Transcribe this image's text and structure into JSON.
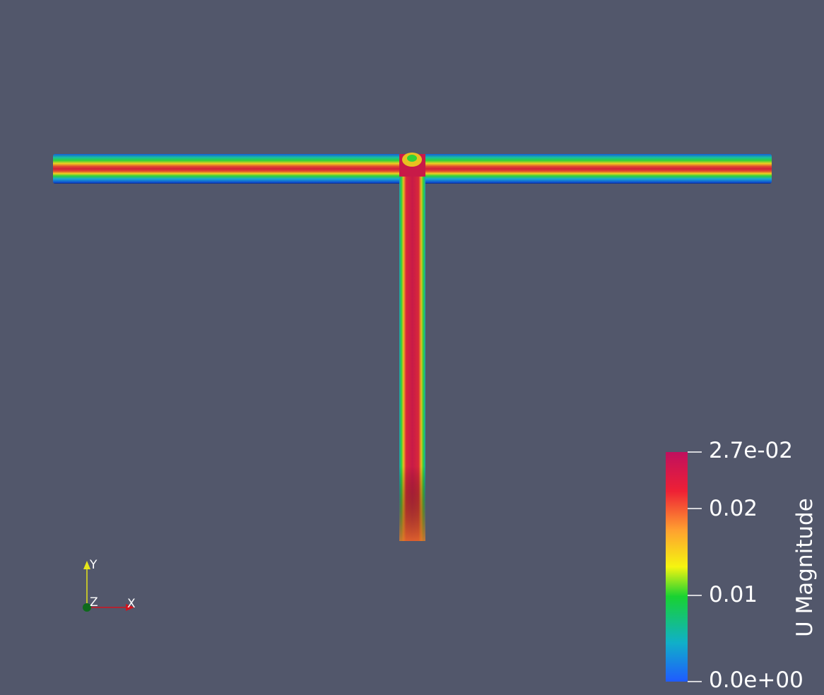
{
  "scalar_bar": {
    "title": "U Magnitude",
    "range": [
      0.0,
      0.027
    ],
    "ticks": [
      {
        "label": "2.7e-02",
        "value": 0.027
      },
      {
        "label": "0.02",
        "value": 0.02
      },
      {
        "label": "0.01",
        "value": 0.01
      },
      {
        "label": "0.0e+00",
        "value": 0.0
      }
    ],
    "colormap": [
      "#1f5bff",
      "#10bca6",
      "#18d232",
      "#f5f510",
      "#ffa030",
      "#ee2035",
      "#c0105e"
    ]
  },
  "orientation_axes": {
    "x_label": "X",
    "y_label": "Y",
    "z_label": "Z",
    "x_color": "#d0141e",
    "y_color": "#e5e51a",
    "z_color": "#0e6a1c"
  },
  "scene": {
    "background": "#52576b",
    "geometry": "T-junction",
    "field": "U Magnitude"
  }
}
